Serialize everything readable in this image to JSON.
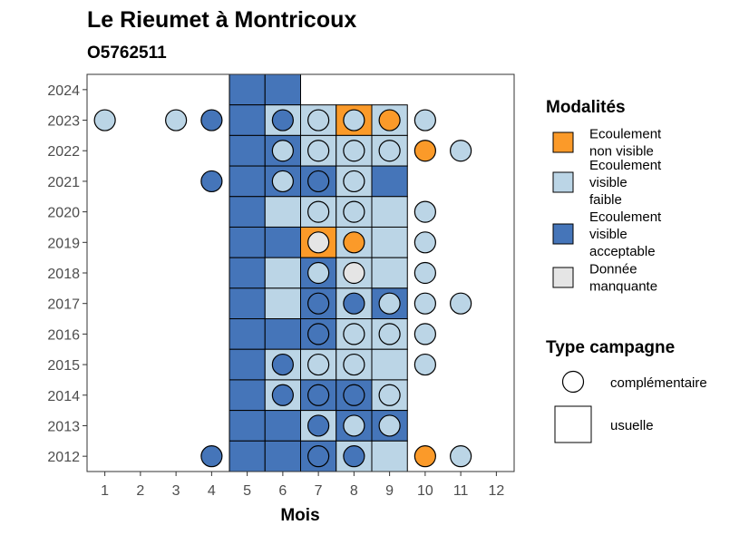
{
  "chart_data": {
    "type": "heatmap",
    "title": "Le Rieumet à Montricoux",
    "subtitle": "O5762511",
    "xlabel": "Mois",
    "ylabel": "",
    "x_ticks": [
      "1",
      "2",
      "3",
      "4",
      "5",
      "6",
      "7",
      "8",
      "9",
      "10",
      "11",
      "12"
    ],
    "y_ticks": [
      "2012",
      "2013",
      "2014",
      "2015",
      "2016",
      "2017",
      "2018",
      "2019",
      "2020",
      "2021",
      "2022",
      "2023",
      "2024"
    ],
    "xlim": [
      0.5,
      12.5
    ],
    "ylim": [
      2011.5,
      2024.5
    ],
    "grid": false,
    "colors": {
      "non_visible": "#FB9A29",
      "faible": "#BBD5E6",
      "acceptable": "#4575B9",
      "manquante": "#E5E5E5"
    },
    "legend_modalites": {
      "title": "Modalités",
      "entries": [
        {
          "key": "non_visible",
          "lines": [
            "Ecoulement",
            "non visible"
          ]
        },
        {
          "key": "faible",
          "lines": [
            "Ecoulement",
            "visible",
            "faible"
          ]
        },
        {
          "key": "acceptable",
          "lines": [
            "Ecoulement",
            "visible",
            "acceptable"
          ]
        },
        {
          "key": "manquante",
          "lines": [
            "Donnée",
            "manquante"
          ]
        }
      ]
    },
    "legend_campagne": {
      "title": "Type campagne",
      "entries": [
        {
          "shape": "circle",
          "label": "complémentaire"
        },
        {
          "shape": "square",
          "label": "usuelle"
        }
      ]
    },
    "usuelle": [
      {
        "year": 2024,
        "month": 5,
        "value": "acceptable"
      },
      {
        "year": 2024,
        "month": 6,
        "value": "acceptable"
      },
      {
        "year": 2023,
        "month": 5,
        "value": "acceptable"
      },
      {
        "year": 2023,
        "month": 6,
        "value": "faible"
      },
      {
        "year": 2023,
        "month": 7,
        "value": "faible"
      },
      {
        "year": 2023,
        "month": 8,
        "value": "non_visible"
      },
      {
        "year": 2023,
        "month": 9,
        "value": "faible"
      },
      {
        "year": 2022,
        "month": 5,
        "value": "acceptable"
      },
      {
        "year": 2022,
        "month": 6,
        "value": "acceptable"
      },
      {
        "year": 2022,
        "month": 7,
        "value": "faible"
      },
      {
        "year": 2022,
        "month": 8,
        "value": "faible"
      },
      {
        "year": 2022,
        "month": 9,
        "value": "faible"
      },
      {
        "year": 2021,
        "month": 5,
        "value": "acceptable"
      },
      {
        "year": 2021,
        "month": 6,
        "value": "acceptable"
      },
      {
        "year": 2021,
        "month": 7,
        "value": "acceptable"
      },
      {
        "year": 2021,
        "month": 8,
        "value": "faible"
      },
      {
        "year": 2021,
        "month": 9,
        "value": "acceptable"
      },
      {
        "year": 2020,
        "month": 5,
        "value": "acceptable"
      },
      {
        "year": 2020,
        "month": 6,
        "value": "faible"
      },
      {
        "year": 2020,
        "month": 7,
        "value": "faible"
      },
      {
        "year": 2020,
        "month": 8,
        "value": "faible"
      },
      {
        "year": 2020,
        "month": 9,
        "value": "faible"
      },
      {
        "year": 2019,
        "month": 5,
        "value": "acceptable"
      },
      {
        "year": 2019,
        "month": 6,
        "value": "acceptable"
      },
      {
        "year": 2019,
        "month": 7,
        "value": "non_visible"
      },
      {
        "year": 2019,
        "month": 8,
        "value": "faible"
      },
      {
        "year": 2019,
        "month": 9,
        "value": "faible"
      },
      {
        "year": 2018,
        "month": 5,
        "value": "acceptable"
      },
      {
        "year": 2018,
        "month": 6,
        "value": "faible"
      },
      {
        "year": 2018,
        "month": 7,
        "value": "acceptable"
      },
      {
        "year": 2018,
        "month": 8,
        "value": "faible"
      },
      {
        "year": 2018,
        "month": 9,
        "value": "faible"
      },
      {
        "year": 2017,
        "month": 5,
        "value": "acceptable"
      },
      {
        "year": 2017,
        "month": 6,
        "value": "faible"
      },
      {
        "year": 2017,
        "month": 7,
        "value": "acceptable"
      },
      {
        "year": 2017,
        "month": 8,
        "value": "faible"
      },
      {
        "year": 2017,
        "month": 9,
        "value": "acceptable"
      },
      {
        "year": 2016,
        "month": 5,
        "value": "acceptable"
      },
      {
        "year": 2016,
        "month": 6,
        "value": "acceptable"
      },
      {
        "year": 2016,
        "month": 7,
        "value": "acceptable"
      },
      {
        "year": 2016,
        "month": 8,
        "value": "faible"
      },
      {
        "year": 2016,
        "month": 9,
        "value": "faible"
      },
      {
        "year": 2015,
        "month": 5,
        "value": "acceptable"
      },
      {
        "year": 2015,
        "month": 6,
        "value": "faible"
      },
      {
        "year": 2015,
        "month": 7,
        "value": "faible"
      },
      {
        "year": 2015,
        "month": 8,
        "value": "faible"
      },
      {
        "year": 2015,
        "month": 9,
        "value": "faible"
      },
      {
        "year": 2014,
        "month": 5,
        "value": "acceptable"
      },
      {
        "year": 2014,
        "month": 6,
        "value": "faible"
      },
      {
        "year": 2014,
        "month": 7,
        "value": "acceptable"
      },
      {
        "year": 2014,
        "month": 8,
        "value": "acceptable"
      },
      {
        "year": 2014,
        "month": 9,
        "value": "faible"
      },
      {
        "year": 2013,
        "month": 5,
        "value": "acceptable"
      },
      {
        "year": 2013,
        "month": 6,
        "value": "acceptable"
      },
      {
        "year": 2013,
        "month": 7,
        "value": "faible"
      },
      {
        "year": 2013,
        "month": 8,
        "value": "acceptable"
      },
      {
        "year": 2013,
        "month": 9,
        "value": "acceptable"
      },
      {
        "year": 2012,
        "month": 5,
        "value": "acceptable"
      },
      {
        "year": 2012,
        "month": 6,
        "value": "acceptable"
      },
      {
        "year": 2012,
        "month": 7,
        "value": "acceptable"
      },
      {
        "year": 2012,
        "month": 8,
        "value": "faible"
      },
      {
        "year": 2012,
        "month": 9,
        "value": "faible"
      }
    ],
    "complementaire": [
      {
        "year": 2023,
        "month": 1,
        "value": "faible"
      },
      {
        "year": 2023,
        "month": 3,
        "value": "faible"
      },
      {
        "year": 2023,
        "month": 4,
        "value": "acceptable"
      },
      {
        "year": 2023,
        "month": 6,
        "value": "acceptable"
      },
      {
        "year": 2023,
        "month": 7,
        "value": "faible"
      },
      {
        "year": 2023,
        "month": 8,
        "value": "faible"
      },
      {
        "year": 2023,
        "month": 9,
        "value": "non_visible"
      },
      {
        "year": 2023,
        "month": 10,
        "value": "faible"
      },
      {
        "year": 2022,
        "month": 6,
        "value": "faible"
      },
      {
        "year": 2022,
        "month": 7,
        "value": "faible"
      },
      {
        "year": 2022,
        "month": 8,
        "value": "faible"
      },
      {
        "year": 2022,
        "month": 9,
        "value": "faible"
      },
      {
        "year": 2022,
        "month": 10,
        "value": "non_visible"
      },
      {
        "year": 2022,
        "month": 11,
        "value": "faible"
      },
      {
        "year": 2021,
        "month": 4,
        "value": "acceptable"
      },
      {
        "year": 2021,
        "month": 6,
        "value": "faible"
      },
      {
        "year": 2021,
        "month": 7,
        "value": "acceptable"
      },
      {
        "year": 2021,
        "month": 8,
        "value": "faible"
      },
      {
        "year": 2020,
        "month": 7,
        "value": "faible"
      },
      {
        "year": 2020,
        "month": 8,
        "value": "faible"
      },
      {
        "year": 2020,
        "month": 10,
        "value": "faible"
      },
      {
        "year": 2019,
        "month": 7,
        "value": "manquante"
      },
      {
        "year": 2019,
        "month": 8,
        "value": "non_visible"
      },
      {
        "year": 2019,
        "month": 10,
        "value": "faible"
      },
      {
        "year": 2018,
        "month": 7,
        "value": "faible"
      },
      {
        "year": 2018,
        "month": 8,
        "value": "manquante"
      },
      {
        "year": 2018,
        "month": 10,
        "value": "faible"
      },
      {
        "year": 2017,
        "month": 7,
        "value": "acceptable"
      },
      {
        "year": 2017,
        "month": 8,
        "value": "acceptable"
      },
      {
        "year": 2017,
        "month": 9,
        "value": "faible"
      },
      {
        "year": 2017,
        "month": 10,
        "value": "faible"
      },
      {
        "year": 2017,
        "month": 11,
        "value": "faible"
      },
      {
        "year": 2016,
        "month": 7,
        "value": "acceptable"
      },
      {
        "year": 2016,
        "month": 8,
        "value": "faible"
      },
      {
        "year": 2016,
        "month": 9,
        "value": "faible"
      },
      {
        "year": 2016,
        "month": 10,
        "value": "faible"
      },
      {
        "year": 2015,
        "month": 6,
        "value": "acceptable"
      },
      {
        "year": 2015,
        "month": 7,
        "value": "faible"
      },
      {
        "year": 2015,
        "month": 8,
        "value": "faible"
      },
      {
        "year": 2015,
        "month": 10,
        "value": "faible"
      },
      {
        "year": 2014,
        "month": 6,
        "value": "acceptable"
      },
      {
        "year": 2014,
        "month": 7,
        "value": "acceptable"
      },
      {
        "year": 2014,
        "month": 8,
        "value": "acceptable"
      },
      {
        "year": 2014,
        "month": 9,
        "value": "faible"
      },
      {
        "year": 2013,
        "month": 7,
        "value": "acceptable"
      },
      {
        "year": 2013,
        "month": 8,
        "value": "faible"
      },
      {
        "year": 2013,
        "month": 9,
        "value": "faible"
      },
      {
        "year": 2012,
        "month": 4,
        "value": "acceptable"
      },
      {
        "year": 2012,
        "month": 7,
        "value": "acceptable"
      },
      {
        "year": 2012,
        "month": 8,
        "value": "acceptable"
      },
      {
        "year": 2012,
        "month": 10,
        "value": "non_visible"
      },
      {
        "year": 2012,
        "month": 11,
        "value": "faible"
      }
    ]
  }
}
